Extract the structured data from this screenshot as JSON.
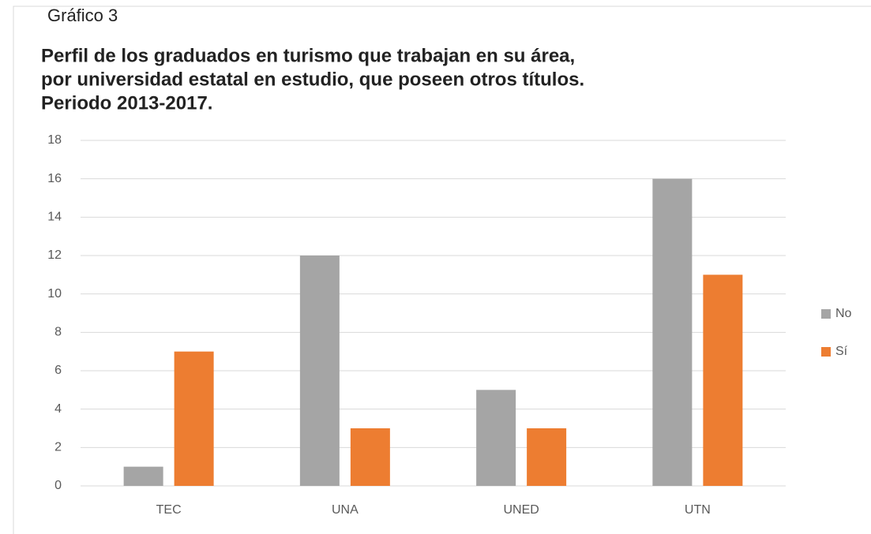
{
  "chart_data": {
    "type": "bar",
    "label": "Gráfico 3",
    "title": [
      "Perfil de los graduados en turismo que trabajan en su área,",
      "por universidad estatal en estudio, que poseen otros títulos.",
      "Periodo 2013-2017."
    ],
    "categories": [
      "TEC",
      "UNA",
      "UNED",
      "UTN"
    ],
    "series": [
      {
        "name": "No",
        "color": "#a5a5a5",
        "values": [
          1,
          12,
          5,
          16
        ]
      },
      {
        "name": "Sí",
        "color": "#ed7d31",
        "values": [
          7,
          3,
          3,
          11
        ]
      }
    ],
    "ylim": [
      0,
      18
    ],
    "yticks": [
      0,
      2,
      4,
      6,
      8,
      10,
      12,
      14,
      16,
      18
    ],
    "grid": true,
    "legend": "right"
  }
}
